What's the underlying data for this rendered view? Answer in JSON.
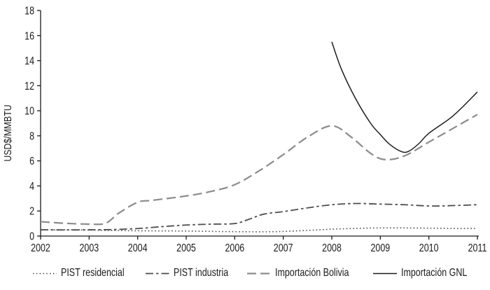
{
  "chart_data": {
    "type": "line",
    "title": "",
    "xlabel": "",
    "ylabel": "USD$/MMBTU",
    "xlim": [
      2002,
      2011
    ],
    "ylim": [
      0,
      18
    ],
    "x_ticks": [
      2002,
      2003,
      2004,
      2005,
      2006,
      2007,
      2008,
      2009,
      2010,
      2011
    ],
    "y_ticks": [
      0,
      2,
      4,
      6,
      8,
      10,
      12,
      14,
      16,
      18
    ],
    "grid": false,
    "legend_position": "bottom",
    "series": [
      {
        "name": "PIST residencial",
        "style": "dotted",
        "color": "#4d4d4d",
        "width": 1.6,
        "dash": "1.6 3.2",
        "points": [
          [
            2002,
            0.5
          ],
          [
            2002.5,
            0.5
          ],
          [
            2003,
            0.48
          ],
          [
            2004,
            0.42
          ],
          [
            2005,
            0.4
          ],
          [
            2006,
            0.35
          ],
          [
            2006.8,
            0.35
          ],
          [
            2007.5,
            0.45
          ],
          [
            2008,
            0.55
          ],
          [
            2008.7,
            0.63
          ],
          [
            2009,
            0.65
          ],
          [
            2009.5,
            0.65
          ],
          [
            2010,
            0.63
          ],
          [
            2010.5,
            0.61
          ],
          [
            2011,
            0.6
          ]
        ]
      },
      {
        "name": "PIST industria",
        "style": "dash-dot",
        "color": "#4d4d4d",
        "width": 1.8,
        "dash": "11 4 3.5 4",
        "points": [
          [
            2002,
            0.5
          ],
          [
            2002.5,
            0.49
          ],
          [
            2003,
            0.5
          ],
          [
            2003.5,
            0.52
          ],
          [
            2004,
            0.6
          ],
          [
            2004.5,
            0.75
          ],
          [
            2005,
            0.88
          ],
          [
            2005.5,
            0.95
          ],
          [
            2006,
            1.0
          ],
          [
            2006.3,
            1.35
          ],
          [
            2006.6,
            1.75
          ],
          [
            2007,
            1.95
          ],
          [
            2007.5,
            2.25
          ],
          [
            2008,
            2.5
          ],
          [
            2008.5,
            2.6
          ],
          [
            2009,
            2.55
          ],
          [
            2009.5,
            2.5
          ],
          [
            2010,
            2.4
          ],
          [
            2010.4,
            2.42
          ],
          [
            2011,
            2.5
          ]
        ]
      },
      {
        "name": "Importación Bolivia",
        "style": "dashed",
        "color": "#8c8c8c",
        "width": 2.2,
        "dash": "13 6",
        "points": [
          [
            2002,
            1.15
          ],
          [
            2002.5,
            1.02
          ],
          [
            2003,
            0.95
          ],
          [
            2003.3,
            0.97
          ],
          [
            2003.45,
            1.3
          ],
          [
            2003.6,
            1.8
          ],
          [
            2004,
            2.7
          ],
          [
            2004.3,
            2.85
          ],
          [
            2005,
            3.2
          ],
          [
            2005.5,
            3.55
          ],
          [
            2006,
            4.1
          ],
          [
            2006.5,
            5.2
          ],
          [
            2007,
            6.5
          ],
          [
            2007.5,
            7.9
          ],
          [
            2008,
            8.8
          ],
          [
            2008.4,
            7.9
          ],
          [
            2008.8,
            6.6
          ],
          [
            2009.1,
            6.1
          ],
          [
            2009.5,
            6.4
          ],
          [
            2010,
            7.5
          ],
          [
            2010.5,
            8.6
          ],
          [
            2011,
            9.7
          ]
        ]
      },
      {
        "name": "Importación GNL",
        "style": "solid",
        "color": "#1c1c1c",
        "width": 1.5,
        "dash": "",
        "points": [
          [
            2008,
            15.5
          ],
          [
            2008.2,
            13.3
          ],
          [
            2008.5,
            10.9
          ],
          [
            2008.8,
            9.0
          ],
          [
            2009,
            8.1
          ],
          [
            2009.2,
            7.3
          ],
          [
            2009.45,
            6.72
          ],
          [
            2009.6,
            6.8
          ],
          [
            2009.8,
            7.4
          ],
          [
            2010,
            8.2
          ],
          [
            2010.5,
            9.6
          ],
          [
            2011,
            11.5
          ]
        ]
      }
    ]
  }
}
